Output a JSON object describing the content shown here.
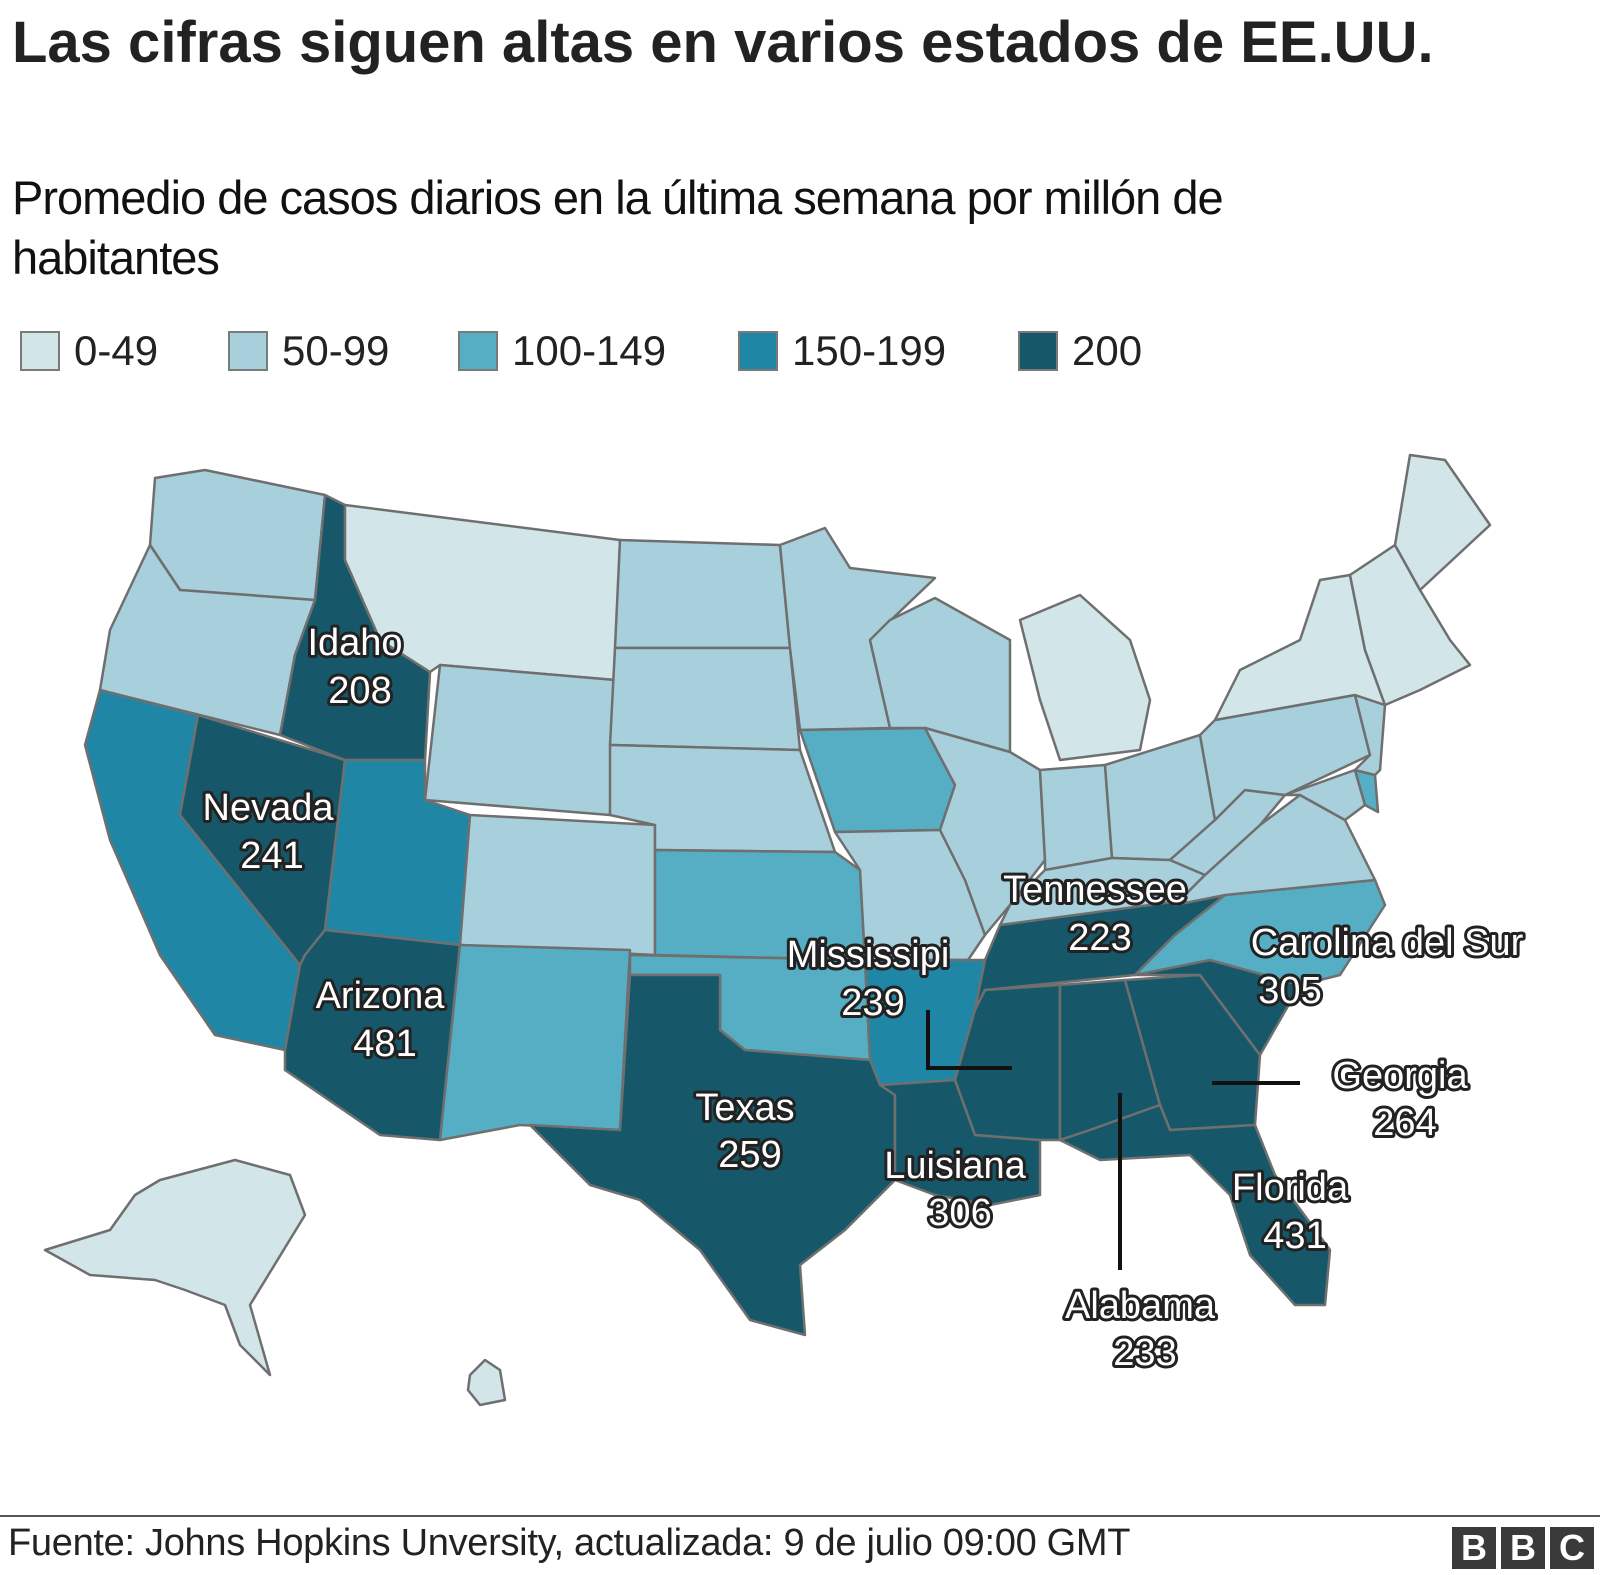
{
  "header": {
    "title": "Las cifras siguen altas en varios estados de EE.UU.",
    "subtitle": "Promedio de casos diarios en la última semana por millón de habitantes"
  },
  "legend": [
    {
      "label": "0-49",
      "color": "#d2e5e9"
    },
    {
      "label": "50-99",
      "color": "#a8d0dc"
    },
    {
      "label": "100-149",
      "color": "#55aec3"
    },
    {
      "label": "150-199",
      "color": "#1f87a5"
    },
    {
      "label": "200",
      "color": "#165869"
    }
  ],
  "map": {
    "state_colors": {
      "washington": "#a8d0dc",
      "oregon": "#a8d0dc",
      "california": "#1f87a5",
      "idaho": "#165869",
      "nevada": "#165869",
      "arizona": "#165869",
      "utah": "#1f87a5",
      "montana": "#d2e5e9",
      "wyoming": "#a8d0dc",
      "colorado": "#a8d0dc",
      "new_mexico": "#55aec3",
      "north_dakota": "#a8d0dc",
      "south_dakota": "#a8d0dc",
      "nebraska": "#a8d0dc",
      "kansas": "#55aec3",
      "oklahoma": "#55aec3",
      "texas": "#165869",
      "minnesota": "#a8d0dc",
      "iowa": "#55aec3",
      "missouri": "#a8d0dc",
      "arkansas": "#1f87a5",
      "louisiana": "#165869",
      "wisconsin": "#a8d0dc",
      "illinois": "#a8d0dc",
      "michigan": "#d2e5e9",
      "indiana": "#a8d0dc",
      "ohio": "#a8d0dc",
      "kentucky": "#a8d0dc",
      "tennessee": "#165869",
      "mississippi": "#165869",
      "alabama": "#165869",
      "georgia": "#165869",
      "florida": "#165869",
      "south_carolina": "#165869",
      "north_carolina": "#55aec3",
      "virginia": "#a8d0dc",
      "west_virginia": "#a8d0dc",
      "pennsylvania": "#a8d0dc",
      "new_york": "#d2e5e9",
      "new_jersey": "#a8d0dc",
      "delaware": "#55aec3",
      "maryland": "#a8d0dc",
      "new_england": "#d2e5e9",
      "maine": "#d2e5e9",
      "alaska": "#d2e5e9",
      "hawaii": "#d2e5e9"
    },
    "labels": [
      {
        "key": "idaho",
        "name": "Idaho",
        "value": "208"
      },
      {
        "key": "nevada",
        "name": "Nevada",
        "value": "241"
      },
      {
        "key": "arizona",
        "name": "Arizona",
        "value": "481"
      },
      {
        "key": "texas",
        "name": "Texas",
        "value": "259"
      },
      {
        "key": "mississippi",
        "name": "Mississipi",
        "value": "239"
      },
      {
        "key": "luisiana",
        "name": "Luisiana",
        "value": "306"
      },
      {
        "key": "tennessee",
        "name": "Tennessee",
        "value": "223"
      },
      {
        "key": "carolina-del-sur",
        "name": "Carolina del Sur",
        "value": "305"
      },
      {
        "key": "georgia",
        "name": "Georgia",
        "value": "264"
      },
      {
        "key": "florida",
        "name": "Florida",
        "value": "431"
      },
      {
        "key": "alabama",
        "name": "Alabama",
        "value": "233"
      }
    ]
  },
  "footer": {
    "source": "Fuente: Johns Hopkins Unversity, actualizada: 9 de julio 09:00 GMT",
    "logo": [
      "B",
      "B",
      "C"
    ]
  }
}
